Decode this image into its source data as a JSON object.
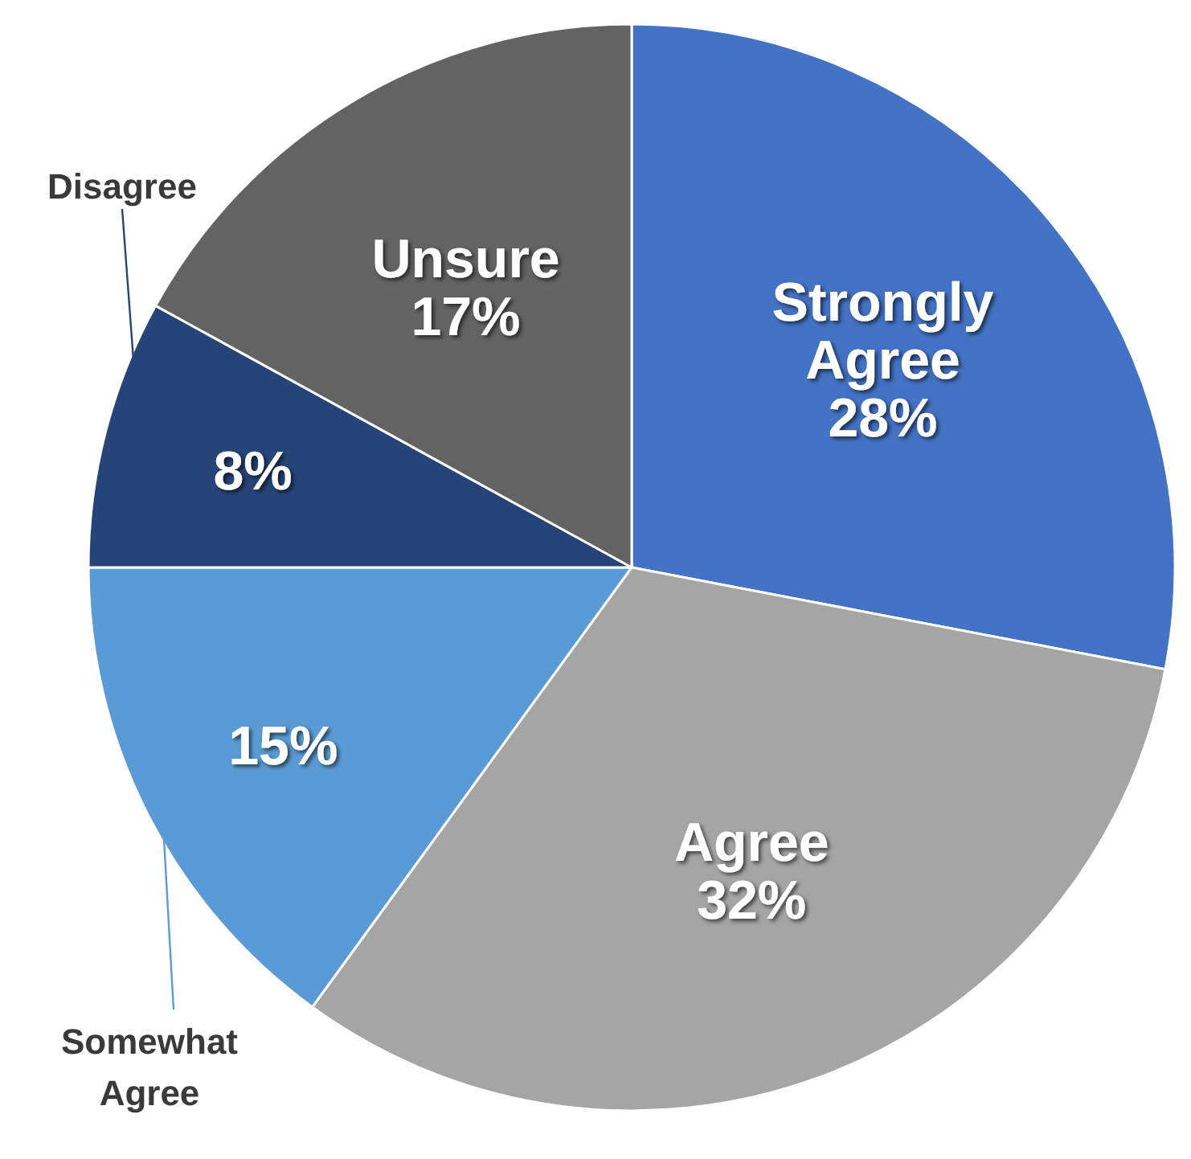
{
  "chart_data": {
    "type": "pie",
    "categories": [
      "Strongly Agree",
      "Agree",
      "Somewhat Agree",
      "Disagree",
      "Unsure"
    ],
    "values": [
      28,
      32,
      15,
      8,
      17
    ],
    "colors": [
      "#4472c4",
      "#a5a5a5",
      "#5b9bd5",
      "#264478",
      "#636363"
    ],
    "value_labels": [
      "28%",
      "32%",
      "15%",
      "8%",
      "17%"
    ]
  }
}
